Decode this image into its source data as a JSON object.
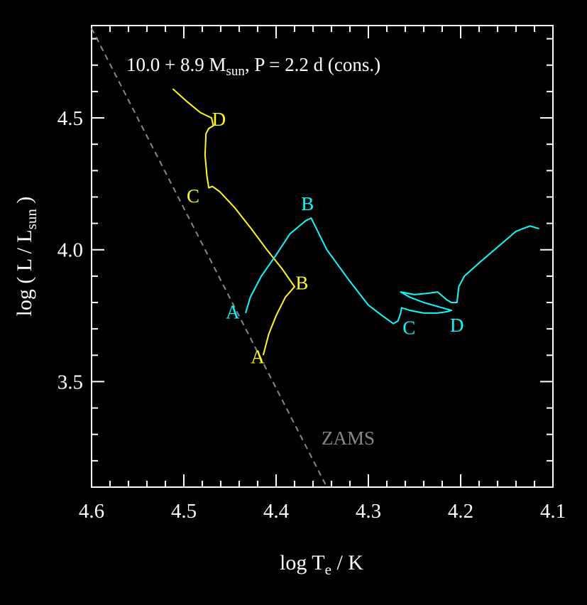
{
  "chart_data": {
    "type": "line",
    "title_main": "10.0 + 8.9 M",
    "title_sub": "sun",
    "title_tail": ", P = 2.2 d (cons.)",
    "xlabel_main": "log T",
    "xlabel_sub": "e",
    "xlabel_tail": " / K",
    "ylabel_main": "log ( L / L",
    "ylabel_sub": "sun",
    "ylabel_tail": " )",
    "xlim": [
      4.6,
      4.1
    ],
    "ylim": [
      3.1,
      4.85
    ],
    "x_ticks": [
      "4.6",
      "4.5",
      "4.4",
      "4.3",
      "4.2",
      "4.1"
    ],
    "y_ticks": [
      "3.5",
      "4.0",
      "4.5"
    ],
    "colors": {
      "primary": "#ffff00",
      "secondary": "#00ffff",
      "zams": "#888888"
    },
    "zams": {
      "label": "ZAMS",
      "x": [
        4.6,
        4.345
      ],
      "y": [
        4.84,
        3.1
      ],
      "style": "dashed"
    },
    "series": [
      {
        "color": "#ffff00",
        "x": [
          4.414,
          4.408,
          4.4,
          4.39,
          4.38,
          4.382,
          4.394,
          4.41,
          4.427,
          4.445,
          4.461,
          4.469,
          4.473,
          4.475,
          4.477,
          4.476,
          4.473,
          4.468,
          4.47,
          4.482,
          4.496,
          4.512
        ],
        "y": [
          3.6,
          3.68,
          3.75,
          3.82,
          3.86,
          3.87,
          3.93,
          4.0,
          4.08,
          4.16,
          4.22,
          4.24,
          4.235,
          4.28,
          4.36,
          4.44,
          4.46,
          4.47,
          4.5,
          4.52,
          4.56,
          4.61
        ]
      },
      {
        "color": "#00ffff",
        "x": [
          4.433,
          4.428,
          4.416,
          4.4,
          4.385,
          4.368,
          4.362,
          4.345,
          4.32,
          4.3,
          4.285,
          4.273,
          4.268,
          4.265,
          4.264,
          4.255,
          4.24,
          4.225,
          4.215,
          4.21,
          4.22,
          4.24,
          4.255,
          4.265,
          4.25,
          4.235,
          4.225,
          4.215,
          4.21,
          4.204,
          4.202,
          4.196,
          4.18,
          4.16,
          4.14,
          4.125,
          4.115
        ],
        "y": [
          3.76,
          3.82,
          3.9,
          3.98,
          4.06,
          4.11,
          4.12,
          4.0,
          3.88,
          3.79,
          3.75,
          3.72,
          3.73,
          3.76,
          3.78,
          3.77,
          3.76,
          3.76,
          3.765,
          3.77,
          3.78,
          3.8,
          3.82,
          3.84,
          3.83,
          3.835,
          3.84,
          3.81,
          3.8,
          3.8,
          3.86,
          3.9,
          3.95,
          4.01,
          4.07,
          4.09,
          4.08
        ]
      }
    ],
    "annotations": [
      {
        "text": "D",
        "x": 4.462,
        "y": 4.47,
        "color": "#ffff00"
      },
      {
        "text": "C",
        "x": 4.49,
        "y": 4.18,
        "color": "#ffff00"
      },
      {
        "text": "B",
        "x": 4.372,
        "y": 3.85,
        "color": "#ffff00"
      },
      {
        "text": "A",
        "x": 4.42,
        "y": 3.57,
        "color": "#ffff00"
      },
      {
        "text": "B",
        "x": 4.366,
        "y": 4.15,
        "color": "#00ffff"
      },
      {
        "text": "A",
        "x": 4.447,
        "y": 3.74,
        "color": "#00ffff"
      },
      {
        "text": "C",
        "x": 4.256,
        "y": 3.68,
        "color": "#00ffff"
      },
      {
        "text": "D",
        "x": 4.204,
        "y": 3.69,
        "color": "#00ffff"
      }
    ]
  }
}
